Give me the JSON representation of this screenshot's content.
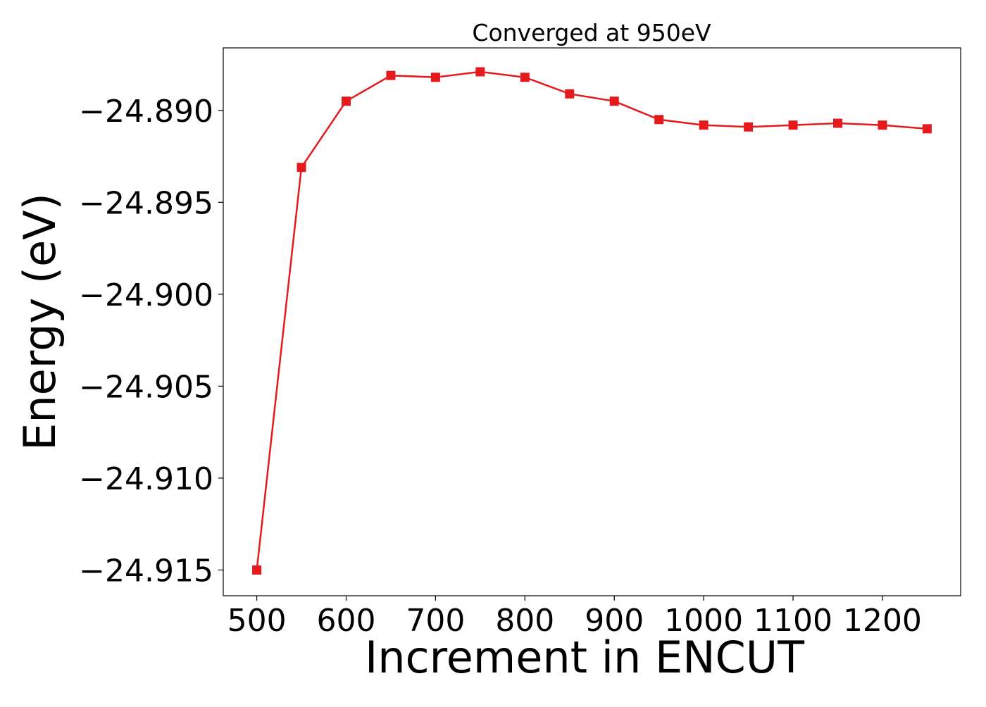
{
  "chart_data": {
    "type": "line",
    "title": "Converged at 950eV",
    "xlabel": "Increment in ENCUT",
    "ylabel": "Energy (eV)",
    "xlim": [
      462.5,
      1287.5
    ],
    "ylim": [
      -24.9164,
      -24.8866
    ],
    "xticks": [
      500,
      600,
      700,
      800,
      900,
      1000,
      1100,
      1200
    ],
    "xtick_labels": [
      "500",
      "600",
      "700",
      "800",
      "900",
      "1000",
      "1100",
      "1200"
    ],
    "yticks": [
      -24.89,
      -24.895,
      -24.9,
      -24.905,
      -24.91,
      -24.915
    ],
    "ytick_labels": [
      "−24.890",
      "−24.895",
      "−24.900",
      "−24.905",
      "−24.910",
      "−24.915"
    ],
    "grid": false,
    "series": [
      {
        "color": "#e41a1c",
        "marker": "square",
        "x": [
          500,
          550,
          600,
          650,
          700,
          750,
          800,
          850,
          900,
          950,
          1000,
          1050,
          1100,
          1150,
          1200,
          1250
        ],
        "y": [
          -24.915,
          -24.8931,
          -24.8895,
          -24.8881,
          -24.8882,
          -24.8879,
          -24.8882,
          -24.8891,
          -24.8895,
          -24.8905,
          -24.8908,
          -24.8909,
          -24.8908,
          -24.8907,
          -24.8908,
          -24.891
        ]
      }
    ]
  }
}
